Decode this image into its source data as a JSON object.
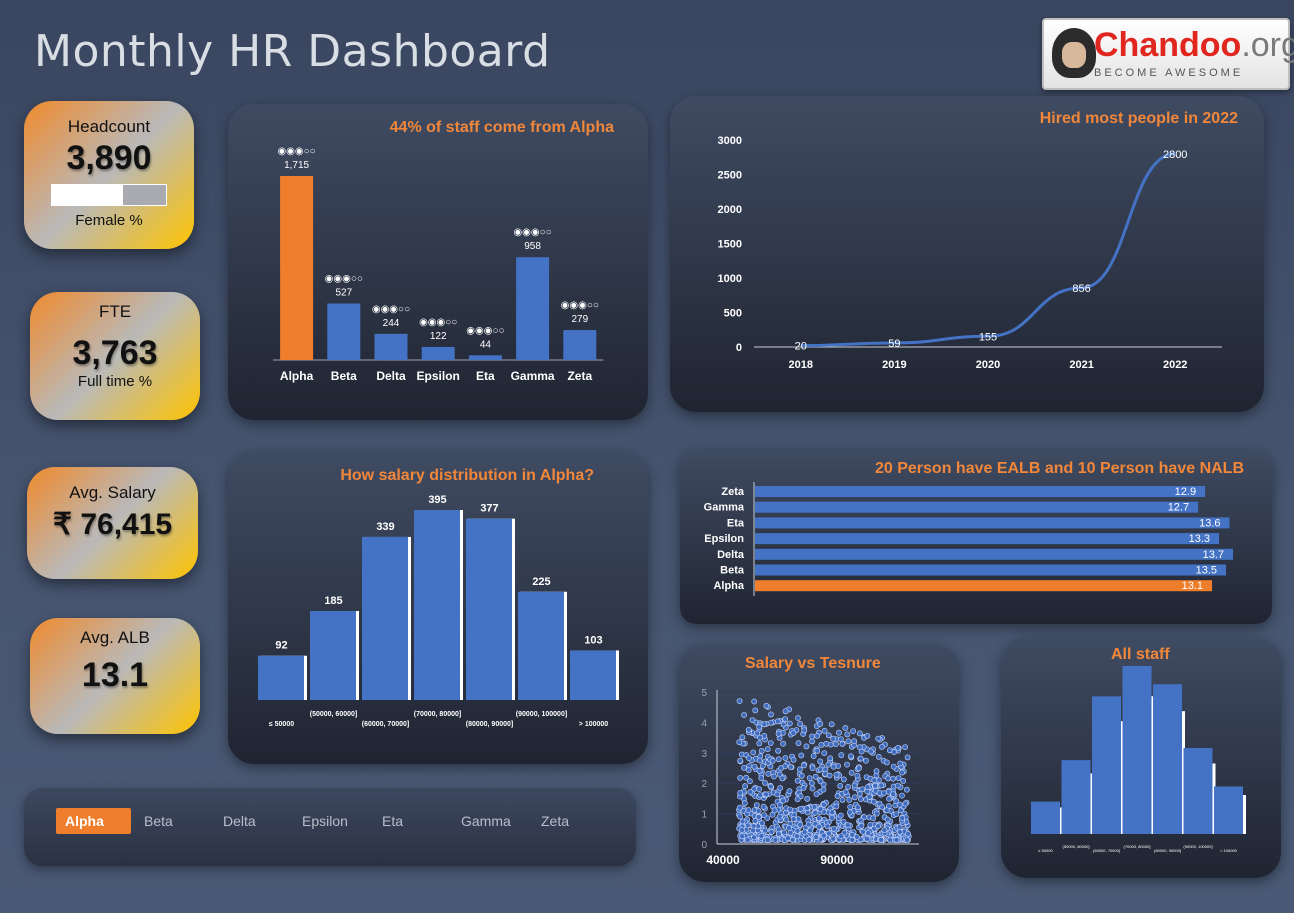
{
  "header": {
    "title": "Monthly HR Dashboard"
  },
  "logo": {
    "brand": "Chandoo",
    "suffix": ".org",
    "tagline": "BECOME AWESOME"
  },
  "kpis": {
    "headcount": {
      "label": "Headcount",
      "value": "3,890",
      "sub": "Female %",
      "female_fraction": 0.62
    },
    "fte": {
      "label": "FTE",
      "value": "3,763",
      "sub": "Full time %"
    },
    "salary": {
      "label": "Avg. Salary",
      "value": "₹ 76,415"
    },
    "alb": {
      "label": "Avg. ALB",
      "value": "13.1"
    }
  },
  "colors": {
    "accent": "#ef7e2c",
    "series": "#4472c4",
    "title_orange": "#f2873a"
  },
  "chart_data": [
    {
      "id": "staff_by_dept",
      "type": "bar",
      "title": "44% of staff come from Alpha",
      "categories": [
        "Alpha",
        "Beta",
        "Delta",
        "Epsilon",
        "Eta",
        "Gamma",
        "Zeta"
      ],
      "values": [
        1715,
        527,
        244,
        122,
        44,
        958,
        279
      ],
      "value_labels": [
        "1,715",
        "527",
        "244",
        "122",
        "44",
        "958",
        "279"
      ],
      "rating_icons": "◉◉◉○○",
      "highlight": "Alpha"
    },
    {
      "id": "hires_by_year",
      "type": "line",
      "title": "Hired most people in 2022",
      "x": [
        "2018",
        "2019",
        "2020",
        "2021",
        "2022"
      ],
      "values": [
        20,
        59,
        155,
        856,
        2800
      ],
      "ylim": [
        0,
        3000
      ],
      "yticks": [
        0,
        500,
        1000,
        1500,
        2000,
        2500,
        3000
      ]
    },
    {
      "id": "salary_dist_alpha",
      "type": "bar",
      "title": "How salary distribution in Alpha?",
      "categories": [
        "≤ 50000",
        "(50000, 60000]",
        "(60000, 70000]",
        "(70000, 80000]",
        "(80000, 90000]",
        "(90000, 100000]",
        "> 100000"
      ],
      "values": [
        92,
        185,
        339,
        395,
        377,
        225,
        103
      ]
    },
    {
      "id": "alb_by_dept",
      "type": "bar",
      "orientation": "horizontal",
      "title": "20 Person have EALB and 10 Person have NALB",
      "categories": [
        "Zeta",
        "Gamma",
        "Eta",
        "Epsilon",
        "Delta",
        "Beta",
        "Alpha"
      ],
      "values": [
        12.9,
        12.7,
        13.6,
        13.3,
        13.7,
        13.5,
        13.1
      ],
      "highlight": "Alpha"
    },
    {
      "id": "salary_vs_tenure",
      "type": "scatter",
      "title": "Salary vs Tesnure",
      "xticks": [
        "40000",
        "90000"
      ],
      "yticks": [
        "0",
        "1",
        "2",
        "3",
        "4",
        "5"
      ]
    },
    {
      "id": "all_staff",
      "type": "bar",
      "title": "All staff",
      "values": [
        32,
        73,
        136,
        166,
        148,
        85,
        47
      ],
      "categories": [
        "≤ 50000",
        "(50000, 60000]",
        "(60000, 70000]",
        "(70000, 80000]",
        "(80000, 90000]",
        "(90000, 100000]",
        "> 100000"
      ]
    }
  ],
  "filters": {
    "items": [
      "Alpha",
      "Beta",
      "Delta",
      "Epsilon",
      "Eta",
      "Gamma",
      "Zeta"
    ],
    "selected": "Alpha"
  }
}
